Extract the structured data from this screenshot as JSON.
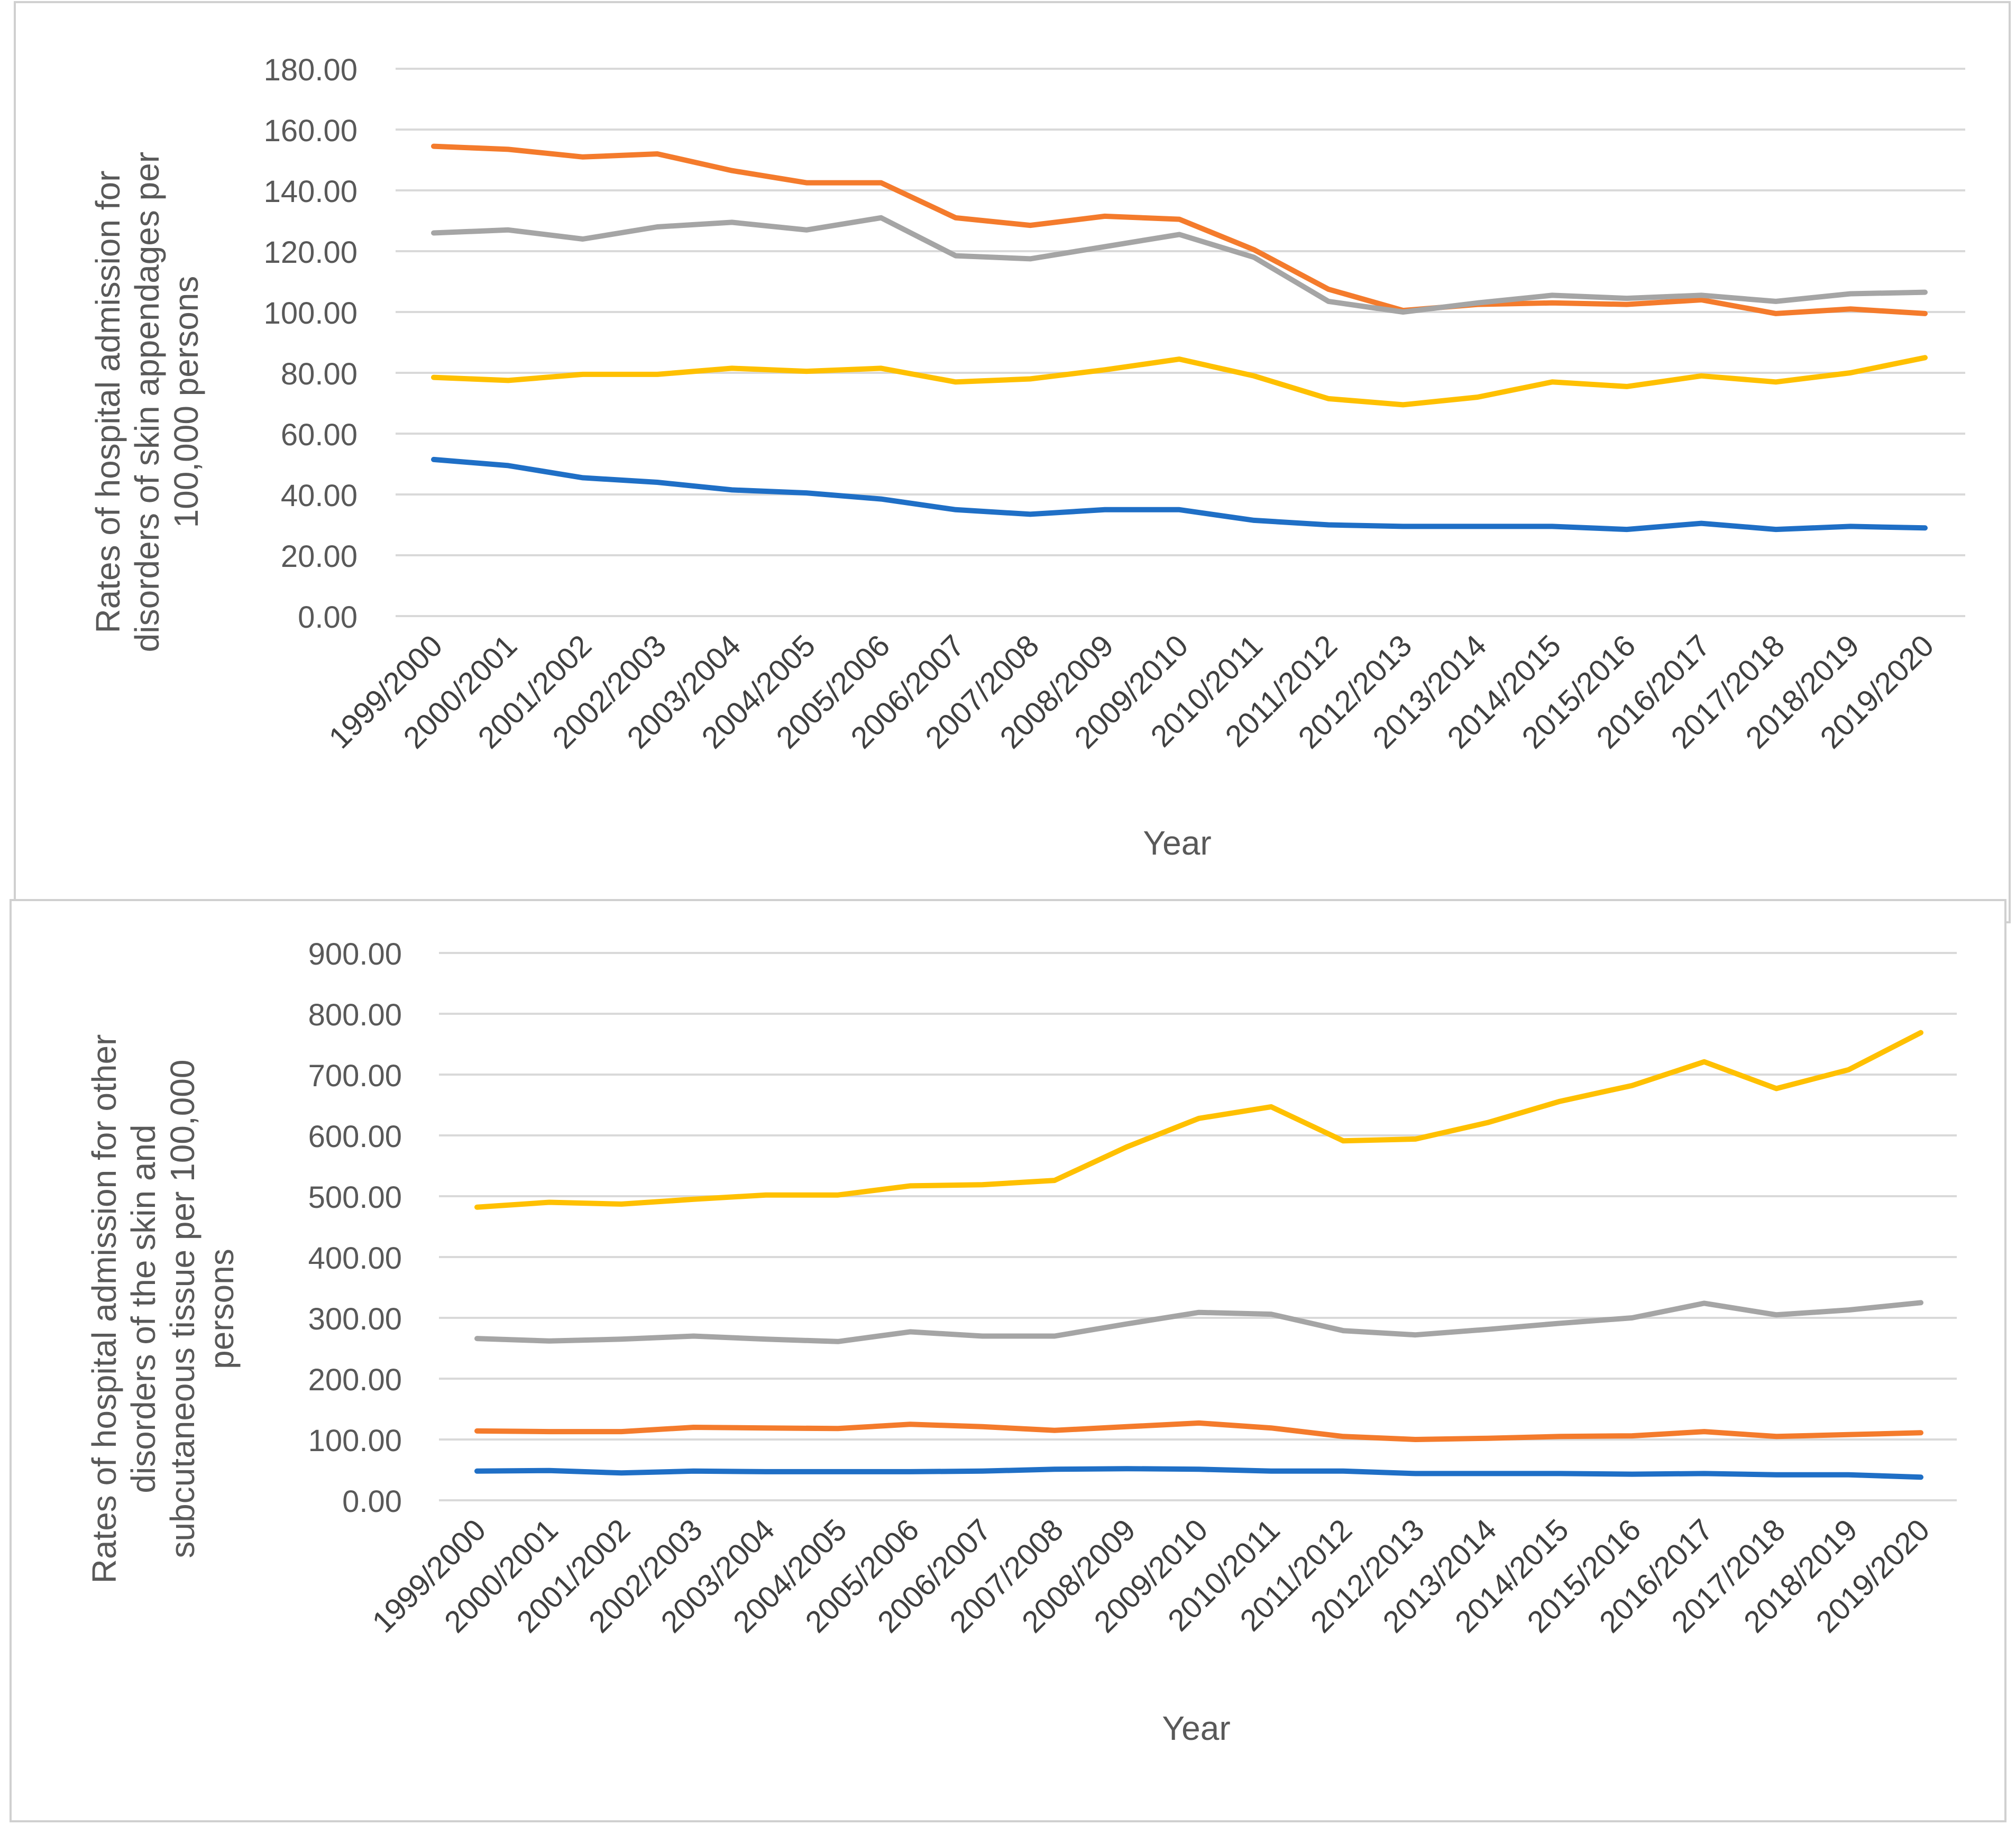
{
  "chart_data": [
    {
      "type": "line",
      "title": "",
      "xlabel": "Year",
      "ylabel": "Rates of hospital admission for disorders of skin appendages per 100,000 persons",
      "ylabel_lines": [
        "Rates of hospital admission for",
        "disorders of skin appendages per",
        "100,000 persons"
      ],
      "categories": [
        "1999/2000",
        "2000/2001",
        "2001/2002",
        "2002/2003",
        "2003/2004",
        "2004/2005",
        "2005/2006",
        "2006/2007",
        "2007/2008",
        "2008/2009",
        "2009/2010",
        "2010/2011",
        "2011/2012",
        "2012/2013",
        "2013/2014",
        "2014/2015",
        "2015/2016",
        "2016/2017",
        "2017/2018",
        "2018/2019",
        "2019/2020"
      ],
      "ylim": [
        0,
        180
      ],
      "yticks": [
        "0.00",
        "20.00",
        "40.00",
        "60.00",
        "80.00",
        "100.00",
        "120.00",
        "140.00",
        "160.00",
        "180.00"
      ],
      "grid": true,
      "series": [
        {
          "name": "",
          "color": "#1F6FC6",
          "values": [
            51.5,
            49.5,
            45.5,
            44,
            41.5,
            40.5,
            38.5,
            35,
            33.5,
            35,
            35,
            31.5,
            30,
            29.5,
            29.5,
            29.5,
            28.5,
            30.5,
            28.5,
            29.5,
            29
          ]
        },
        {
          "name": "",
          "color": "#F47B2C",
          "values": [
            154.5,
            153.5,
            151,
            152,
            146.5,
            142.5,
            142.5,
            131,
            128.5,
            131.5,
            130.5,
            120.5,
            107.5,
            100.5,
            102.5,
            103,
            102.5,
            104,
            99.5,
            101,
            99.5
          ]
        },
        {
          "name": "",
          "color": "#A5A5A5",
          "values": [
            126,
            127,
            124,
            128,
            129.5,
            127,
            131,
            118.5,
            117.5,
            121.5,
            125.5,
            118,
            103.5,
            100,
            103,
            105.5,
            104.5,
            105.5,
            103.5,
            106,
            106.5
          ]
        },
        {
          "name": "",
          "color": "#FFC000",
          "values": [
            78.5,
            77.5,
            79.5,
            79.5,
            81.5,
            80.5,
            81.5,
            77,
            78,
            81,
            84.5,
            79,
            71.5,
            69.5,
            72,
            77,
            75.5,
            79,
            77,
            80,
            85
          ]
        }
      ]
    },
    {
      "type": "line",
      "title": "",
      "xlabel": "Year",
      "ylabel": "Rates of hospital admission for other disorders of the skin and subcutaneous tissue per 100,000 persons",
      "ylabel_lines": [
        "Rates of hospital admission for other",
        "disorders of the skin and",
        "subcutaneous tissue per 100,000",
        "persons"
      ],
      "categories": [
        "1999/2000",
        "2000/2001",
        "2001/2002",
        "2002/2003",
        "2003/2004",
        "2004/2005",
        "2005/2006",
        "2006/2007",
        "2007/2008",
        "2008/2009",
        "2009/2010",
        "2010/2011",
        "2011/2012",
        "2012/2013",
        "2013/2014",
        "2014/2015",
        "2015/2016",
        "2016/2017",
        "2017/2018",
        "2018/2019",
        "2019/2020"
      ],
      "ylim": [
        0,
        900
      ],
      "yticks": [
        "0.00",
        "100.00",
        "200.00",
        "300.00",
        "400.00",
        "500.00",
        "600.00",
        "700.00",
        "800.00",
        "900.00"
      ],
      "grid": true,
      "series": [
        {
          "name": "",
          "color": "#1F6FC6",
          "values": [
            48,
            49,
            45,
            48,
            47,
            47,
            47,
            48,
            51,
            52,
            51,
            48,
            48,
            44,
            44,
            44,
            43,
            44,
            42,
            42,
            38
          ]
        },
        {
          "name": "",
          "color": "#F47B2C",
          "values": [
            114,
            113,
            113,
            120,
            119,
            118,
            125,
            121,
            115,
            121,
            127,
            119,
            105,
            100,
            102,
            105,
            106,
            113,
            105,
            108,
            111
          ]
        },
        {
          "name": "",
          "color": "#A5A5A5",
          "values": [
            266,
            262,
            265,
            270,
            265,
            261,
            277,
            270,
            270,
            290,
            309,
            306,
            279,
            272,
            281,
            291,
            300,
            324,
            305,
            313,
            325
          ]
        },
        {
          "name": "",
          "color": "#FFC000",
          "values": [
            482,
            490,
            487,
            495,
            502,
            502,
            517,
            519,
            526,
            581,
            628,
            647,
            591,
            594,
            621,
            656,
            682,
            721,
            677,
            708,
            769
          ]
        }
      ]
    }
  ]
}
